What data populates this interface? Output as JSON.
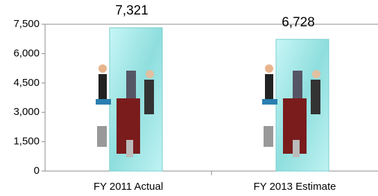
{
  "chart_data": {
    "type": "bar",
    "categories": [
      "FY 2011 Actual",
      "FY 2013 Estimate"
    ],
    "values": [
      7321,
      6728
    ],
    "value_labels": [
      "7,321",
      "6,728"
    ],
    "color": "#a8ecec",
    "ylim": [
      0,
      7500
    ],
    "yticks": [
      0,
      {
        "value": 1500,
        "label": "1,500"
      },
      {
        "value": 3000,
        "label": "3,000"
      },
      {
        "value": 4500,
        "label": "4,500"
      },
      {
        "value": 6000,
        "label": "6,000"
      },
      {
        "value": 7500,
        "label": "7,500"
      }
    ],
    "grid": false
  }
}
